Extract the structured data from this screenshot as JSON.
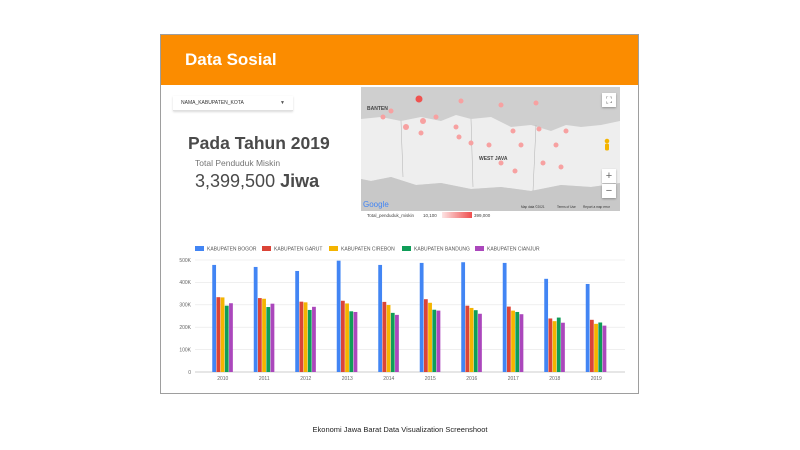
{
  "header": {
    "title": "Data Sosial"
  },
  "filter": {
    "label": "NAMA_KABUPATEN_KOTA"
  },
  "kpi": {
    "title": "Pada Tahun 2019",
    "subtitle": "Total Penduduk Miskin",
    "value": "3,399,500",
    "unit": "Jiwa"
  },
  "map": {
    "labels": {
      "banten": "BANTEN",
      "west_java": "WEST JAVA"
    },
    "google_logo": "Google",
    "attribution": [
      "Map data ©2021",
      "Terms of Use",
      "Report a map error"
    ],
    "legend": {
      "title": "Total_penduduk_miskin",
      "min": "10,100",
      "max": "399,000"
    },
    "controls": {
      "fullscreen": "fullscreen-icon",
      "zoom_in": "+",
      "zoom_out": "−",
      "pegman": "pegman-icon"
    }
  },
  "caption": "Ekonomi Jawa Barat Data Visualization Screenshoot",
  "colors": {
    "header": "#fb8c00",
    "bogor": "#4285f4",
    "garut": "#db4437",
    "cirebon": "#f4b400",
    "bandung": "#0f9d58",
    "cianjur": "#ab47bc"
  },
  "chart_data": {
    "type": "bar",
    "categories": [
      "2010",
      "2011",
      "2012",
      "2013",
      "2014",
      "2015",
      "2016",
      "2017",
      "2018",
      "2019"
    ],
    "series": [
      {
        "name": "KABUPATEN BOGOR",
        "color": "#4285f4",
        "values": [
          478000,
          469000,
          451000,
          497000,
          478000,
          487000,
          490000,
          487000,
          416000,
          393000
        ]
      },
      {
        "name": "KABUPATEN GARUT",
        "color": "#db4437",
        "values": [
          334000,
          330000,
          314000,
          318000,
          313000,
          325000,
          296000,
          292000,
          239000,
          233000
        ]
      },
      {
        "name": "KABUPATEN CIREBON",
        "color": "#f4b400",
        "values": [
          333000,
          327000,
          311000,
          306000,
          299000,
          309000,
          286000,
          274000,
          227000,
          215000
        ]
      },
      {
        "name": "KABUPATEN BANDUNG",
        "color": "#0f9d58",
        "values": [
          296000,
          290000,
          277000,
          271000,
          264000,
          278000,
          276000,
          268000,
          243000,
          221000
        ]
      },
      {
        "name": "KABUPATEN CIANJUR",
        "color": "#ab47bc",
        "values": [
          307000,
          305000,
          291000,
          268000,
          255000,
          274000,
          260000,
          258000,
          220000,
          207000
        ]
      }
    ],
    "yticks": [
      "0",
      "100K",
      "200K",
      "300K",
      "400K",
      "500K"
    ],
    "ylim": [
      0,
      500000
    ],
    "legend_position": "top",
    "grid": true
  }
}
